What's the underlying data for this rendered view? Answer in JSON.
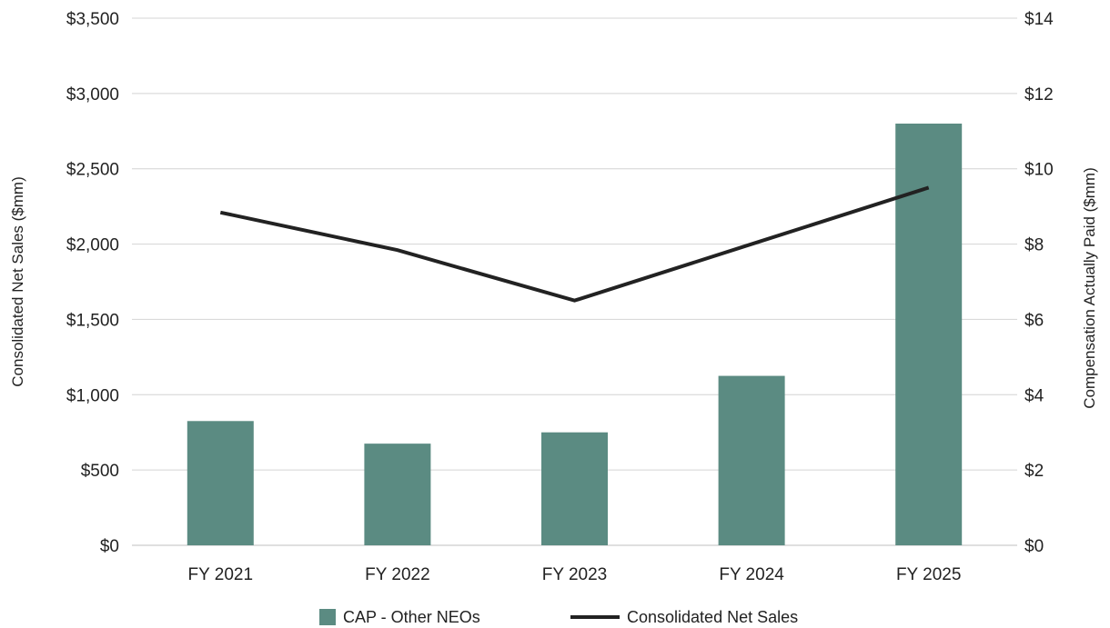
{
  "chart_data": {
    "type": "bar",
    "categories": [
      "FY 2021",
      "FY 2022",
      "FY 2023",
      "FY 2024",
      "FY 2025"
    ],
    "series": [
      {
        "name": "CAP - Other NEOs",
        "type": "bar",
        "axis": "right",
        "color": "#5b8b82",
        "values": [
          3.3,
          2.7,
          3.0,
          4.5,
          11.2
        ]
      },
      {
        "name": "Consolidated Net Sales",
        "type": "line",
        "axis": "left",
        "color": "#222222",
        "values": [
          2210,
          1960,
          1625,
          2000,
          2375
        ]
      }
    ],
    "ylabel_left": "Consolidated Net Sales ($mm)",
    "ylabel_right": "Compensation Actually Paid ($mm)",
    "ylim_left": [
      0,
      3500
    ],
    "ylim_right": [
      0,
      14
    ],
    "yticks_left": [
      "$0",
      "$500",
      "$1,000",
      "$1,500",
      "$2,000",
      "$2,500",
      "$3,000",
      "$3,500"
    ],
    "yticks_right": [
      "$0",
      "$2",
      "$4",
      "$6",
      "$8",
      "$10",
      "$12",
      "$14"
    ],
    "grid": true,
    "legend_position": "bottom-center"
  }
}
